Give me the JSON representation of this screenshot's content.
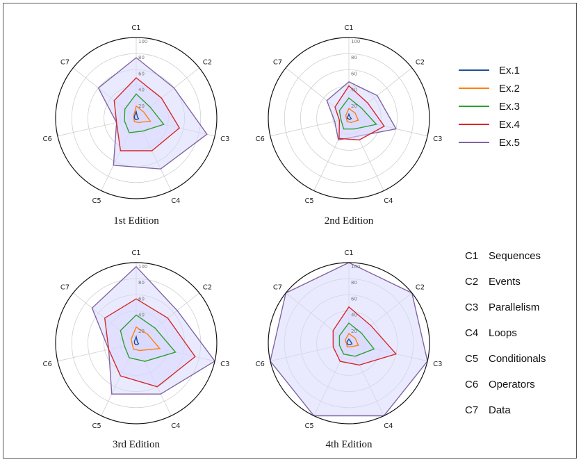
{
  "series_colors": [
    "#1f4e9a",
    "#ff7f0e",
    "#2ca02c",
    "#d62728",
    "#8064a2"
  ],
  "fill_color": "#d8d8ff",
  "legend": [
    "Ex.1",
    "Ex.2",
    "Ex.3",
    "Ex.4",
    "Ex.5"
  ],
  "key": [
    {
      "code": "C1",
      "name": "Sequences"
    },
    {
      "code": "C2",
      "name": "Events"
    },
    {
      "code": "C3",
      "name": "Parallelism"
    },
    {
      "code": "C4",
      "name": "Loops"
    },
    {
      "code": "C5",
      "name": "Conditionals"
    },
    {
      "code": "C6",
      "name": "Operators"
    },
    {
      "code": "C7",
      "name": "Data"
    }
  ],
  "chart_data": [
    {
      "type": "radar",
      "title": "1st Edition",
      "axes": [
        "C1",
        "C2",
        "C3",
        "C4",
        "C5",
        "C6",
        "C7"
      ],
      "rticks": [
        20,
        40,
        60,
        80,
        100
      ],
      "rlim": [
        0,
        100
      ],
      "series": [
        {
          "name": "Ex.1",
          "values": [
            8,
            2,
            3,
            2,
            2,
            2,
            3
          ]
        },
        {
          "name": "Ex.2",
          "values": [
            15,
            12,
            18,
            6,
            5,
            3,
            4
          ]
        },
        {
          "name": "Ex.3",
          "values": [
            30,
            22,
            35,
            18,
            20,
            15,
            18
          ]
        },
        {
          "name": "Ex.4",
          "values": [
            50,
            40,
            55,
            45,
            45,
            25,
            35
          ]
        },
        {
          "name": "Ex.5",
          "values": [
            75,
            60,
            90,
            70,
            65,
            25,
            60
          ]
        }
      ]
    },
    {
      "type": "radar",
      "title": "2nd Edition",
      "axes": [
        "C1",
        "C2",
        "C3",
        "C4",
        "C5",
        "C6",
        "C7"
      ],
      "rticks": [
        20,
        40,
        60,
        80,
        100
      ],
      "rlim": [
        0,
        100
      ],
      "series": [
        {
          "name": "Ex.1",
          "values": [
            5,
            2,
            3,
            2,
            1,
            2,
            2
          ]
        },
        {
          "name": "Ex.2",
          "values": [
            12,
            10,
            12,
            6,
            5,
            3,
            5
          ]
        },
        {
          "name": "Ex.3",
          "values": [
            25,
            20,
            35,
            15,
            15,
            10,
            15
          ]
        },
        {
          "name": "Ex.4",
          "values": [
            40,
            30,
            45,
            30,
            28,
            12,
            22
          ]
        },
        {
          "name": "Ex.5",
          "values": [
            45,
            45,
            60,
            25,
            30,
            18,
            35
          ]
        }
      ]
    },
    {
      "type": "radar",
      "title": "3rd Edition",
      "axes": [
        "C1",
        "C2",
        "C3",
        "C4",
        "C5",
        "C6",
        "C7"
      ],
      "rticks": [
        20,
        40,
        60,
        80,
        100
      ],
      "rlim": [
        0,
        100
      ],
      "series": [
        {
          "name": "Ex.1",
          "values": [
            8,
            2,
            3,
            2,
            2,
            2,
            3
          ]
        },
        {
          "name": "Ex.2",
          "values": [
            20,
            18,
            30,
            10,
            8,
            5,
            8
          ]
        },
        {
          "name": "Ex.3",
          "values": [
            35,
            30,
            50,
            25,
            20,
            15,
            25
          ]
        },
        {
          "name": "Ex.4",
          "values": [
            55,
            50,
            75,
            60,
            45,
            35,
            50
          ]
        },
        {
          "name": "Ex.5",
          "values": [
            95,
            65,
            100,
            70,
            70,
            35,
            70
          ]
        }
      ]
    },
    {
      "type": "radar",
      "title": "4th Edition",
      "axes": [
        "C1",
        "C2",
        "C3",
        "C4",
        "C5",
        "C6",
        "C7"
      ],
      "rticks": [
        20,
        40,
        60,
        80,
        100
      ],
      "rlim": [
        0,
        100
      ],
      "series": [
        {
          "name": "Ex.1",
          "values": [
            5,
            3,
            4,
            2,
            2,
            2,
            3
          ]
        },
        {
          "name": "Ex.2",
          "values": [
            12,
            10,
            12,
            5,
            5,
            3,
            6
          ]
        },
        {
          "name": "Ex.3",
          "values": [
            25,
            20,
            32,
            18,
            15,
            12,
            15
          ]
        },
        {
          "name": "Ex.4",
          "values": [
            45,
            35,
            60,
            30,
            25,
            20,
            25
          ]
        },
        {
          "name": "Ex.5",
          "values": [
            100,
            100,
            100,
            100,
            100,
            100,
            100
          ]
        }
      ]
    }
  ]
}
